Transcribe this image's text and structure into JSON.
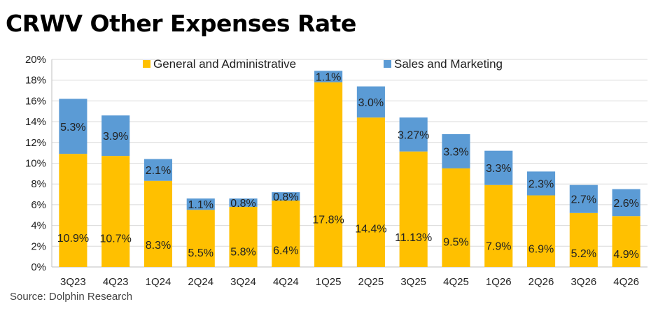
{
  "title": "CRWV Other Expenses Rate",
  "source": "Source:  Dolphin Research",
  "colors": {
    "ga": "#FFC000",
    "sm": "#5B9BD5",
    "grid": "#d9d9d9",
    "axis": "#bfbfbf"
  },
  "chart_data": {
    "type": "bar",
    "stacked": true,
    "title": "CRWV Other Expenses Rate",
    "categories": [
      "3Q23",
      "4Q23",
      "1Q24",
      "2Q24",
      "3Q24",
      "4Q24",
      "1Q25",
      "2Q25",
      "3Q25",
      "4Q25",
      "1Q26",
      "2Q26",
      "3Q26",
      "4Q26"
    ],
    "series": [
      {
        "name": "General and Administrative",
        "color": "#FFC000",
        "values": [
          10.9,
          10.7,
          8.3,
          5.5,
          5.8,
          6.4,
          17.8,
          14.4,
          11.13,
          9.5,
          7.9,
          6.9,
          5.2,
          4.9
        ],
        "labels": [
          "10.9%",
          "10.7%",
          "8.3%",
          "5.5%",
          "5.8%",
          "6.4%",
          "17.8%",
          "14.4%",
          "11.13%",
          "9.5%",
          "7.9%",
          "6.9%",
          "5.2%",
          "4.9%"
        ]
      },
      {
        "name": "Sales and Marketing",
        "color": "#5B9BD5",
        "values": [
          5.3,
          3.9,
          2.1,
          1.1,
          0.8,
          0.8,
          1.1,
          3.0,
          3.27,
          3.3,
          3.3,
          2.3,
          2.7,
          2.6
        ],
        "labels": [
          "5.3%",
          "3.9%",
          "2.1%",
          "1.1%",
          "0.8%",
          "0.8%",
          "1.1%",
          "3.0%",
          "3.27%",
          "3.3%",
          "3.3%",
          "2.3%",
          "2.7%",
          "2.6%"
        ]
      }
    ],
    "ylim": [
      0,
      20
    ],
    "yticks": [
      0,
      2,
      4,
      6,
      8,
      10,
      12,
      14,
      16,
      18,
      20
    ],
    "ytick_labels": [
      "0%",
      "2%",
      "4%",
      "6%",
      "8%",
      "10%",
      "12%",
      "14%",
      "16%",
      "18%",
      "20%"
    ],
    "grid": true,
    "legend": "top"
  }
}
